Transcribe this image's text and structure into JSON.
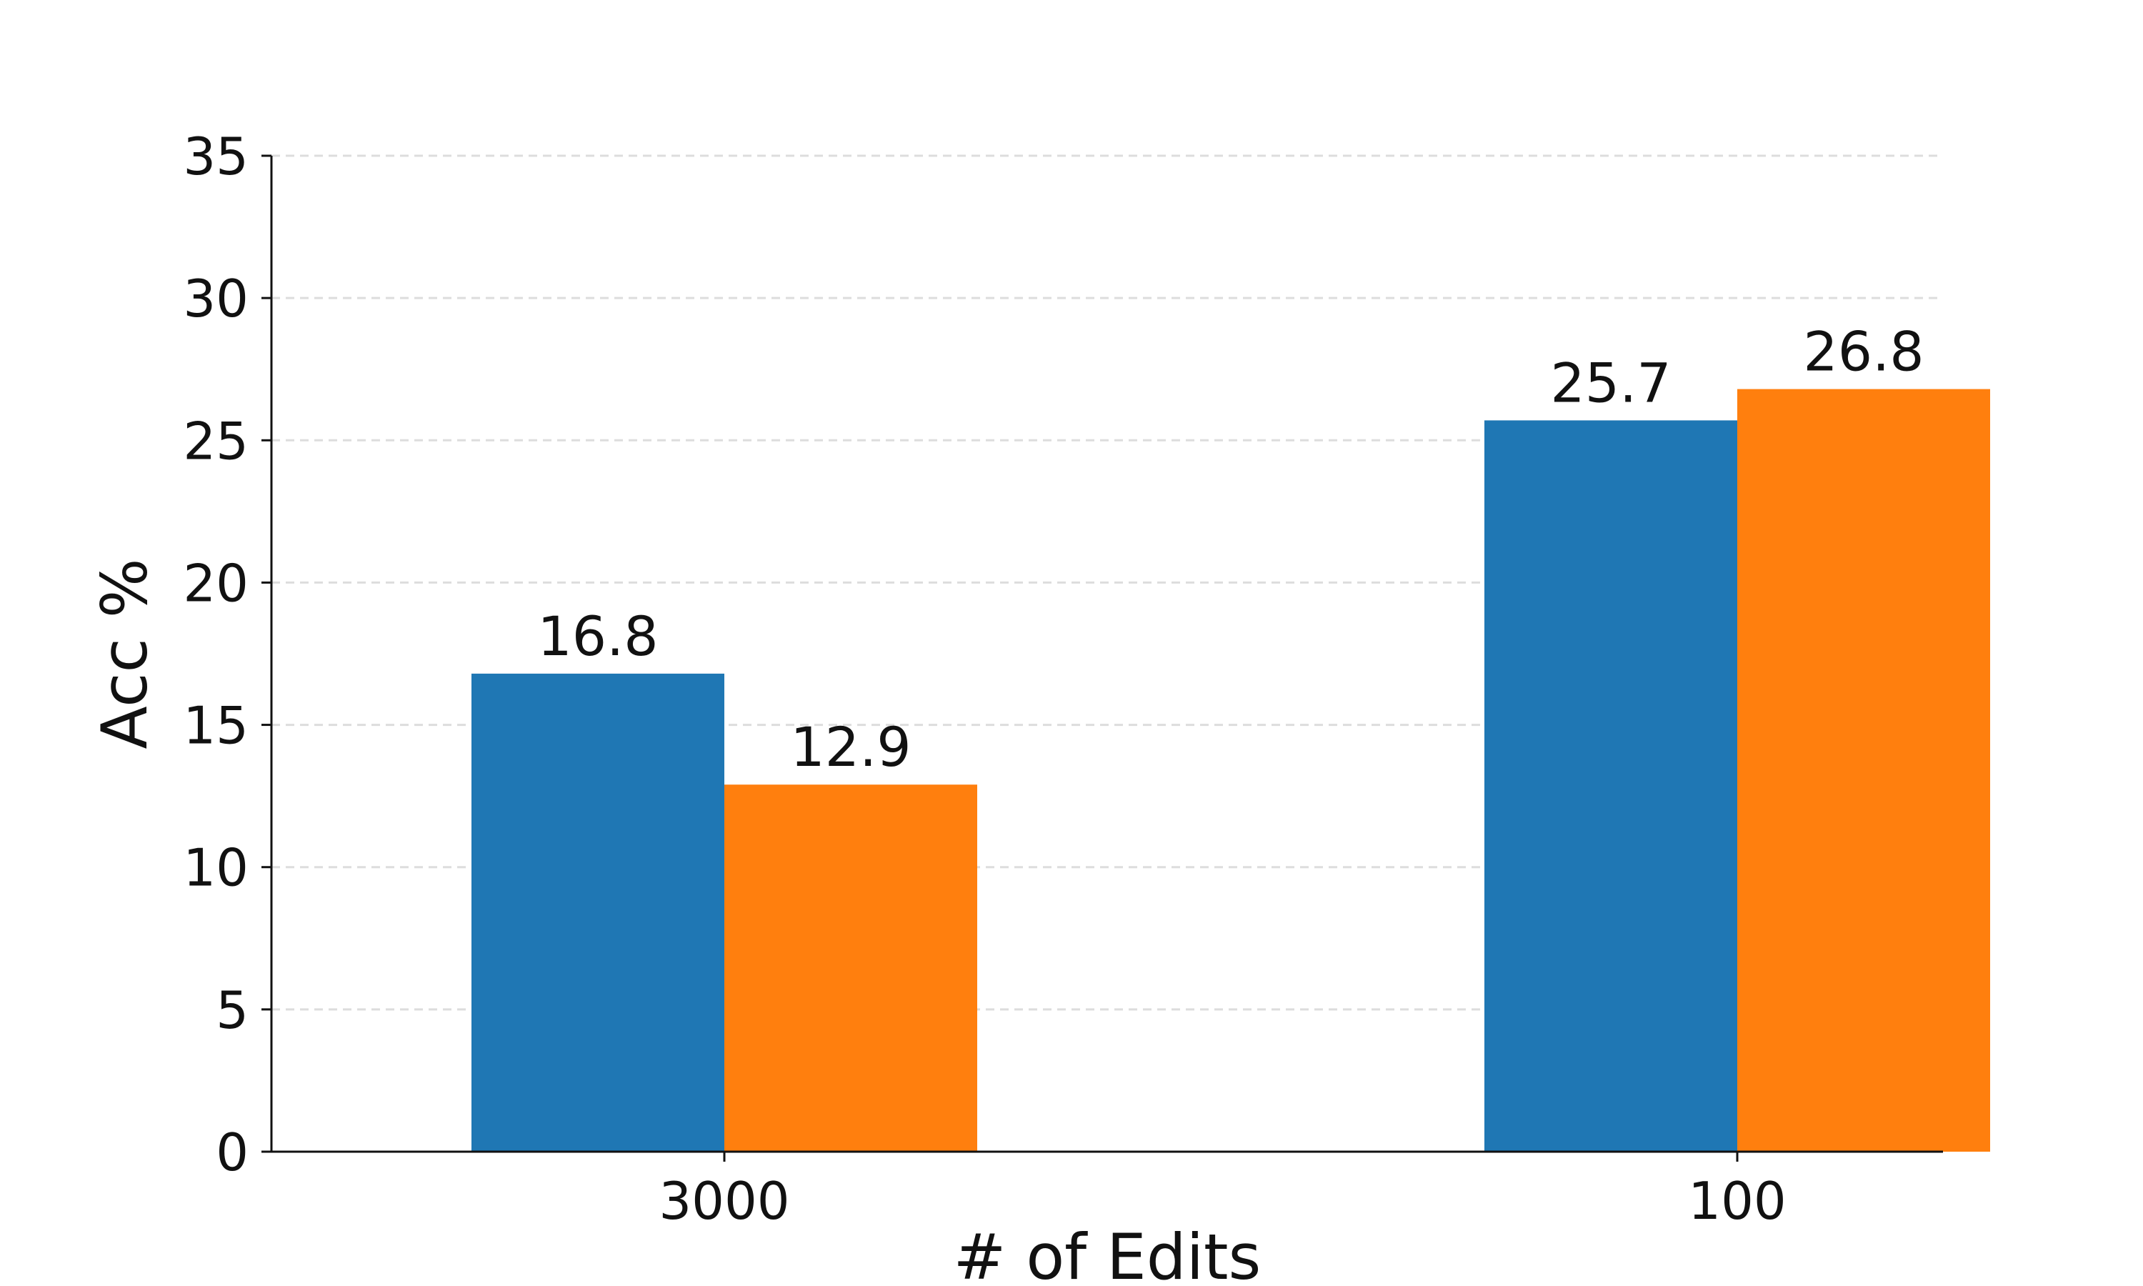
{
  "chart_data": {
    "type": "bar",
    "categories": [
      "3000",
      "100"
    ],
    "series": [
      {
        "values": [
          16.8,
          25.7
        ],
        "color": "#1f77b4"
      },
      {
        "values": [
          12.9,
          26.8
        ],
        "color": "#ff7f0e"
      }
    ],
    "data_labels": [
      [
        "16.8",
        "25.7"
      ],
      [
        "12.9",
        "26.8"
      ]
    ],
    "title": "",
    "xlabel": "# of Edits",
    "ylabel": "Acc %",
    "ylim": [
      0,
      35
    ],
    "yticks": [
      0,
      5,
      10,
      15,
      20,
      25,
      30,
      35
    ],
    "grid": {
      "y": true,
      "style": "dashed"
    },
    "legend": null
  }
}
